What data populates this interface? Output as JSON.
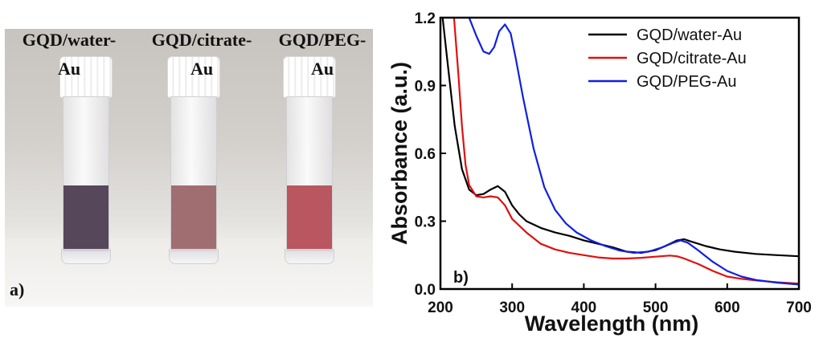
{
  "panel_a": {
    "tag": "a)",
    "vials": [
      {
        "label_line1": "GQD/water-",
        "label_line2": "Au",
        "liquid_color": "#56475a"
      },
      {
        "label_line1": "GQD/citrate-",
        "label_line2": "Au",
        "liquid_color": "#a06e70"
      },
      {
        "label_line1": "GQD/PEG-",
        "label_line2": "Au",
        "liquid_color": "#b9565f"
      }
    ]
  },
  "chart_data": {
    "type": "line",
    "panel_tag": "b)",
    "xlabel": "Wavelength (nm)",
    "ylabel": "Absorbance (a.u.)",
    "xlim": [
      200,
      700
    ],
    "ylim": [
      0.0,
      1.2
    ],
    "x_ticks": [
      200,
      300,
      400,
      500,
      600,
      700
    ],
    "y_ticks": [
      "0.0",
      "0.3",
      "0.6",
      "0.9",
      "1.2"
    ],
    "legend_position": "top-right",
    "series": [
      {
        "name": "GQD/water-Au",
        "color": "#000000",
        "points": [
          [
            203,
            1.2
          ],
          [
            210,
            1.0
          ],
          [
            220,
            0.72
          ],
          [
            230,
            0.53
          ],
          [
            240,
            0.44
          ],
          [
            250,
            0.415
          ],
          [
            260,
            0.42
          ],
          [
            270,
            0.44
          ],
          [
            280,
            0.455
          ],
          [
            290,
            0.43
          ],
          [
            300,
            0.37
          ],
          [
            310,
            0.33
          ],
          [
            320,
            0.3
          ],
          [
            340,
            0.27
          ],
          [
            360,
            0.25
          ],
          [
            380,
            0.235
          ],
          [
            400,
            0.215
          ],
          [
            420,
            0.2
          ],
          [
            440,
            0.185
          ],
          [
            460,
            0.165
          ],
          [
            480,
            0.16
          ],
          [
            500,
            0.172
          ],
          [
            510,
            0.185
          ],
          [
            520,
            0.2
          ],
          [
            530,
            0.215
          ],
          [
            540,
            0.22
          ],
          [
            550,
            0.21
          ],
          [
            570,
            0.19
          ],
          [
            590,
            0.175
          ],
          [
            610,
            0.165
          ],
          [
            640,
            0.155
          ],
          [
            670,
            0.15
          ],
          [
            700,
            0.145
          ]
        ]
      },
      {
        "name": "GQD/citrate-Au",
        "color": "#e01010",
        "points": [
          [
            219,
            1.2
          ],
          [
            225,
            0.95
          ],
          [
            230,
            0.72
          ],
          [
            235,
            0.55
          ],
          [
            240,
            0.46
          ],
          [
            250,
            0.41
          ],
          [
            260,
            0.405
          ],
          [
            270,
            0.41
          ],
          [
            280,
            0.405
          ],
          [
            290,
            0.37
          ],
          [
            300,
            0.31
          ],
          [
            320,
            0.25
          ],
          [
            340,
            0.2
          ],
          [
            360,
            0.175
          ],
          [
            380,
            0.16
          ],
          [
            400,
            0.15
          ],
          [
            420,
            0.14
          ],
          [
            440,
            0.135
          ],
          [
            460,
            0.135
          ],
          [
            480,
            0.138
          ],
          [
            500,
            0.143
          ],
          [
            520,
            0.148
          ],
          [
            530,
            0.145
          ],
          [
            540,
            0.135
          ],
          [
            560,
            0.11
          ],
          [
            580,
            0.08
          ],
          [
            600,
            0.055
          ],
          [
            620,
            0.045
          ],
          [
            640,
            0.038
          ],
          [
            670,
            0.03
          ],
          [
            700,
            0.024
          ]
        ]
      },
      {
        "name": "GQD/PEG-Au",
        "color": "#1020e0",
        "points": [
          [
            240,
            1.2
          ],
          [
            250,
            1.12
          ],
          [
            260,
            1.05
          ],
          [
            268,
            1.04
          ],
          [
            275,
            1.07
          ],
          [
            282,
            1.14
          ],
          [
            290,
            1.17
          ],
          [
            298,
            1.13
          ],
          [
            305,
            1.02
          ],
          [
            315,
            0.85
          ],
          [
            330,
            0.62
          ],
          [
            345,
            0.45
          ],
          [
            360,
            0.35
          ],
          [
            375,
            0.29
          ],
          [
            390,
            0.25
          ],
          [
            410,
            0.215
          ],
          [
            430,
            0.19
          ],
          [
            450,
            0.17
          ],
          [
            470,
            0.16
          ],
          [
            490,
            0.165
          ],
          [
            510,
            0.185
          ],
          [
            525,
            0.205
          ],
          [
            535,
            0.215
          ],
          [
            545,
            0.205
          ],
          [
            560,
            0.17
          ],
          [
            580,
            0.12
          ],
          [
            600,
            0.08
          ],
          [
            620,
            0.055
          ],
          [
            640,
            0.04
          ],
          [
            670,
            0.028
          ],
          [
            700,
            0.02
          ]
        ]
      }
    ]
  }
}
